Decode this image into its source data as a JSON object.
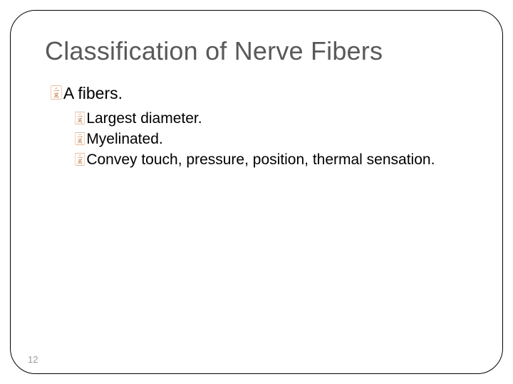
{
  "slide": {
    "title": "Classification of Nerve Fibers",
    "bullet_glyph": "་",
    "colors": {
      "title": "#595959",
      "bullet": "#c9783e",
      "text": "#000000",
      "border": "#000000",
      "background": "#ffffff",
      "slide_number": "#999999"
    },
    "typography": {
      "title_fontsize": 36,
      "level1_fontsize": 23,
      "level2_fontsize": 21,
      "bullet_fontsize_l1": 20,
      "bullet_fontsize_l2": 18,
      "font_family": "Arial"
    },
    "border_radius": 36,
    "level1": [
      {
        "text": "A fibers.",
        "children": [
          {
            "text": "Largest diameter."
          },
          {
            "text": "Myelinated."
          },
          {
            "text": "Convey touch, pressure, position, thermal sensation."
          }
        ]
      }
    ],
    "slide_number": "12"
  }
}
